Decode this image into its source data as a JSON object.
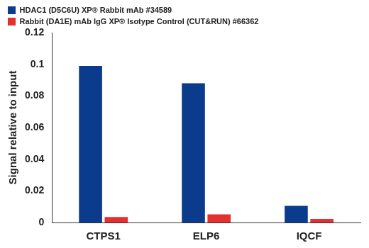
{
  "chart_data": {
    "type": "bar",
    "y_label": "Signal relative to input",
    "categories": [
      "CTPS1",
      "ELP6",
      "IQCF"
    ],
    "series": [
      {
        "name": "HDAC1 (D5C6U) XP® Rabbit mAb #34589",
        "color": "#0b3b8c",
        "values": [
          0.099,
          0.088,
          0.0105
        ]
      },
      {
        "name": "Rabbit (DA1E) mAb IgG XP® Isotype Control (CUT&RUN) #66362",
        "color": "#e2312f",
        "values": [
          0.0035,
          0.0052,
          0.0022
        ]
      }
    ],
    "ylim": [
      0,
      0.12
    ],
    "yticks": [
      0,
      0.02,
      0.04,
      0.06,
      0.08,
      0.1,
      0.12
    ],
    "grid": false,
    "legend": "top-left"
  }
}
